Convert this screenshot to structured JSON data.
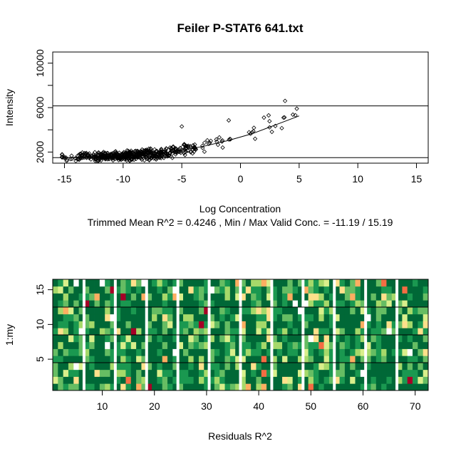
{
  "chart_data": [
    {
      "type": "scatter",
      "title": "Feiler P-STAT6 641.txt",
      "xlabel": "Log Concentration",
      "ylabel": "Intensity",
      "subtitle": "Trimmed Mean R^2 = 0.4246 , Min / Max Valid Conc. = -11.19 / 15.19",
      "xlim": [
        -16,
        16
      ],
      "ylim": [
        1000,
        11000
      ],
      "xticks": [
        -15,
        -10,
        -5,
        0,
        5,
        10,
        15
      ],
      "yticks": [
        2000,
        6000,
        10000
      ],
      "hlines": [
        1500,
        6150
      ],
      "fit_line": [
        [
          -15,
          1500
        ],
        [
          -10,
          1650
        ],
        [
          -7,
          1850
        ],
        [
          -5,
          2150
        ],
        [
          -3,
          2550
        ],
        [
          -1,
          3050
        ],
        [
          1,
          3650
        ],
        [
          3,
          4450
        ],
        [
          5,
          5250
        ]
      ],
      "point_range": {
        "x": [
          -15.2,
          4.9
        ],
        "y": [
          1200,
          6600
        ]
      }
    },
    {
      "type": "heatmap",
      "xlabel": "Residuals R^2",
      "ylabel": "1:my",
      "xlim": [
        0.5,
        72.5
      ],
      "ylim": [
        0.5,
        16.5
      ],
      "xticks": [
        10,
        20,
        30,
        40,
        50,
        60,
        70
      ],
      "yticks": [
        5,
        10,
        15
      ],
      "columns": 72,
      "rows": 16,
      "separator_columns": [
        6.5,
        12.5,
        18.5,
        24.5,
        30.5,
        36.5,
        42.5,
        48.5,
        54.5,
        60.5,
        66.5
      ],
      "separator_rows": [
        4.5,
        8.5,
        12.5
      ],
      "palette": [
        "#006837",
        "#1a9850",
        "#66bd63",
        "#a6d96a",
        "#d9ef8b",
        "#fee08b",
        "#fdae61",
        "#f46d43",
        "#d73027",
        "#a50026"
      ]
    }
  ]
}
